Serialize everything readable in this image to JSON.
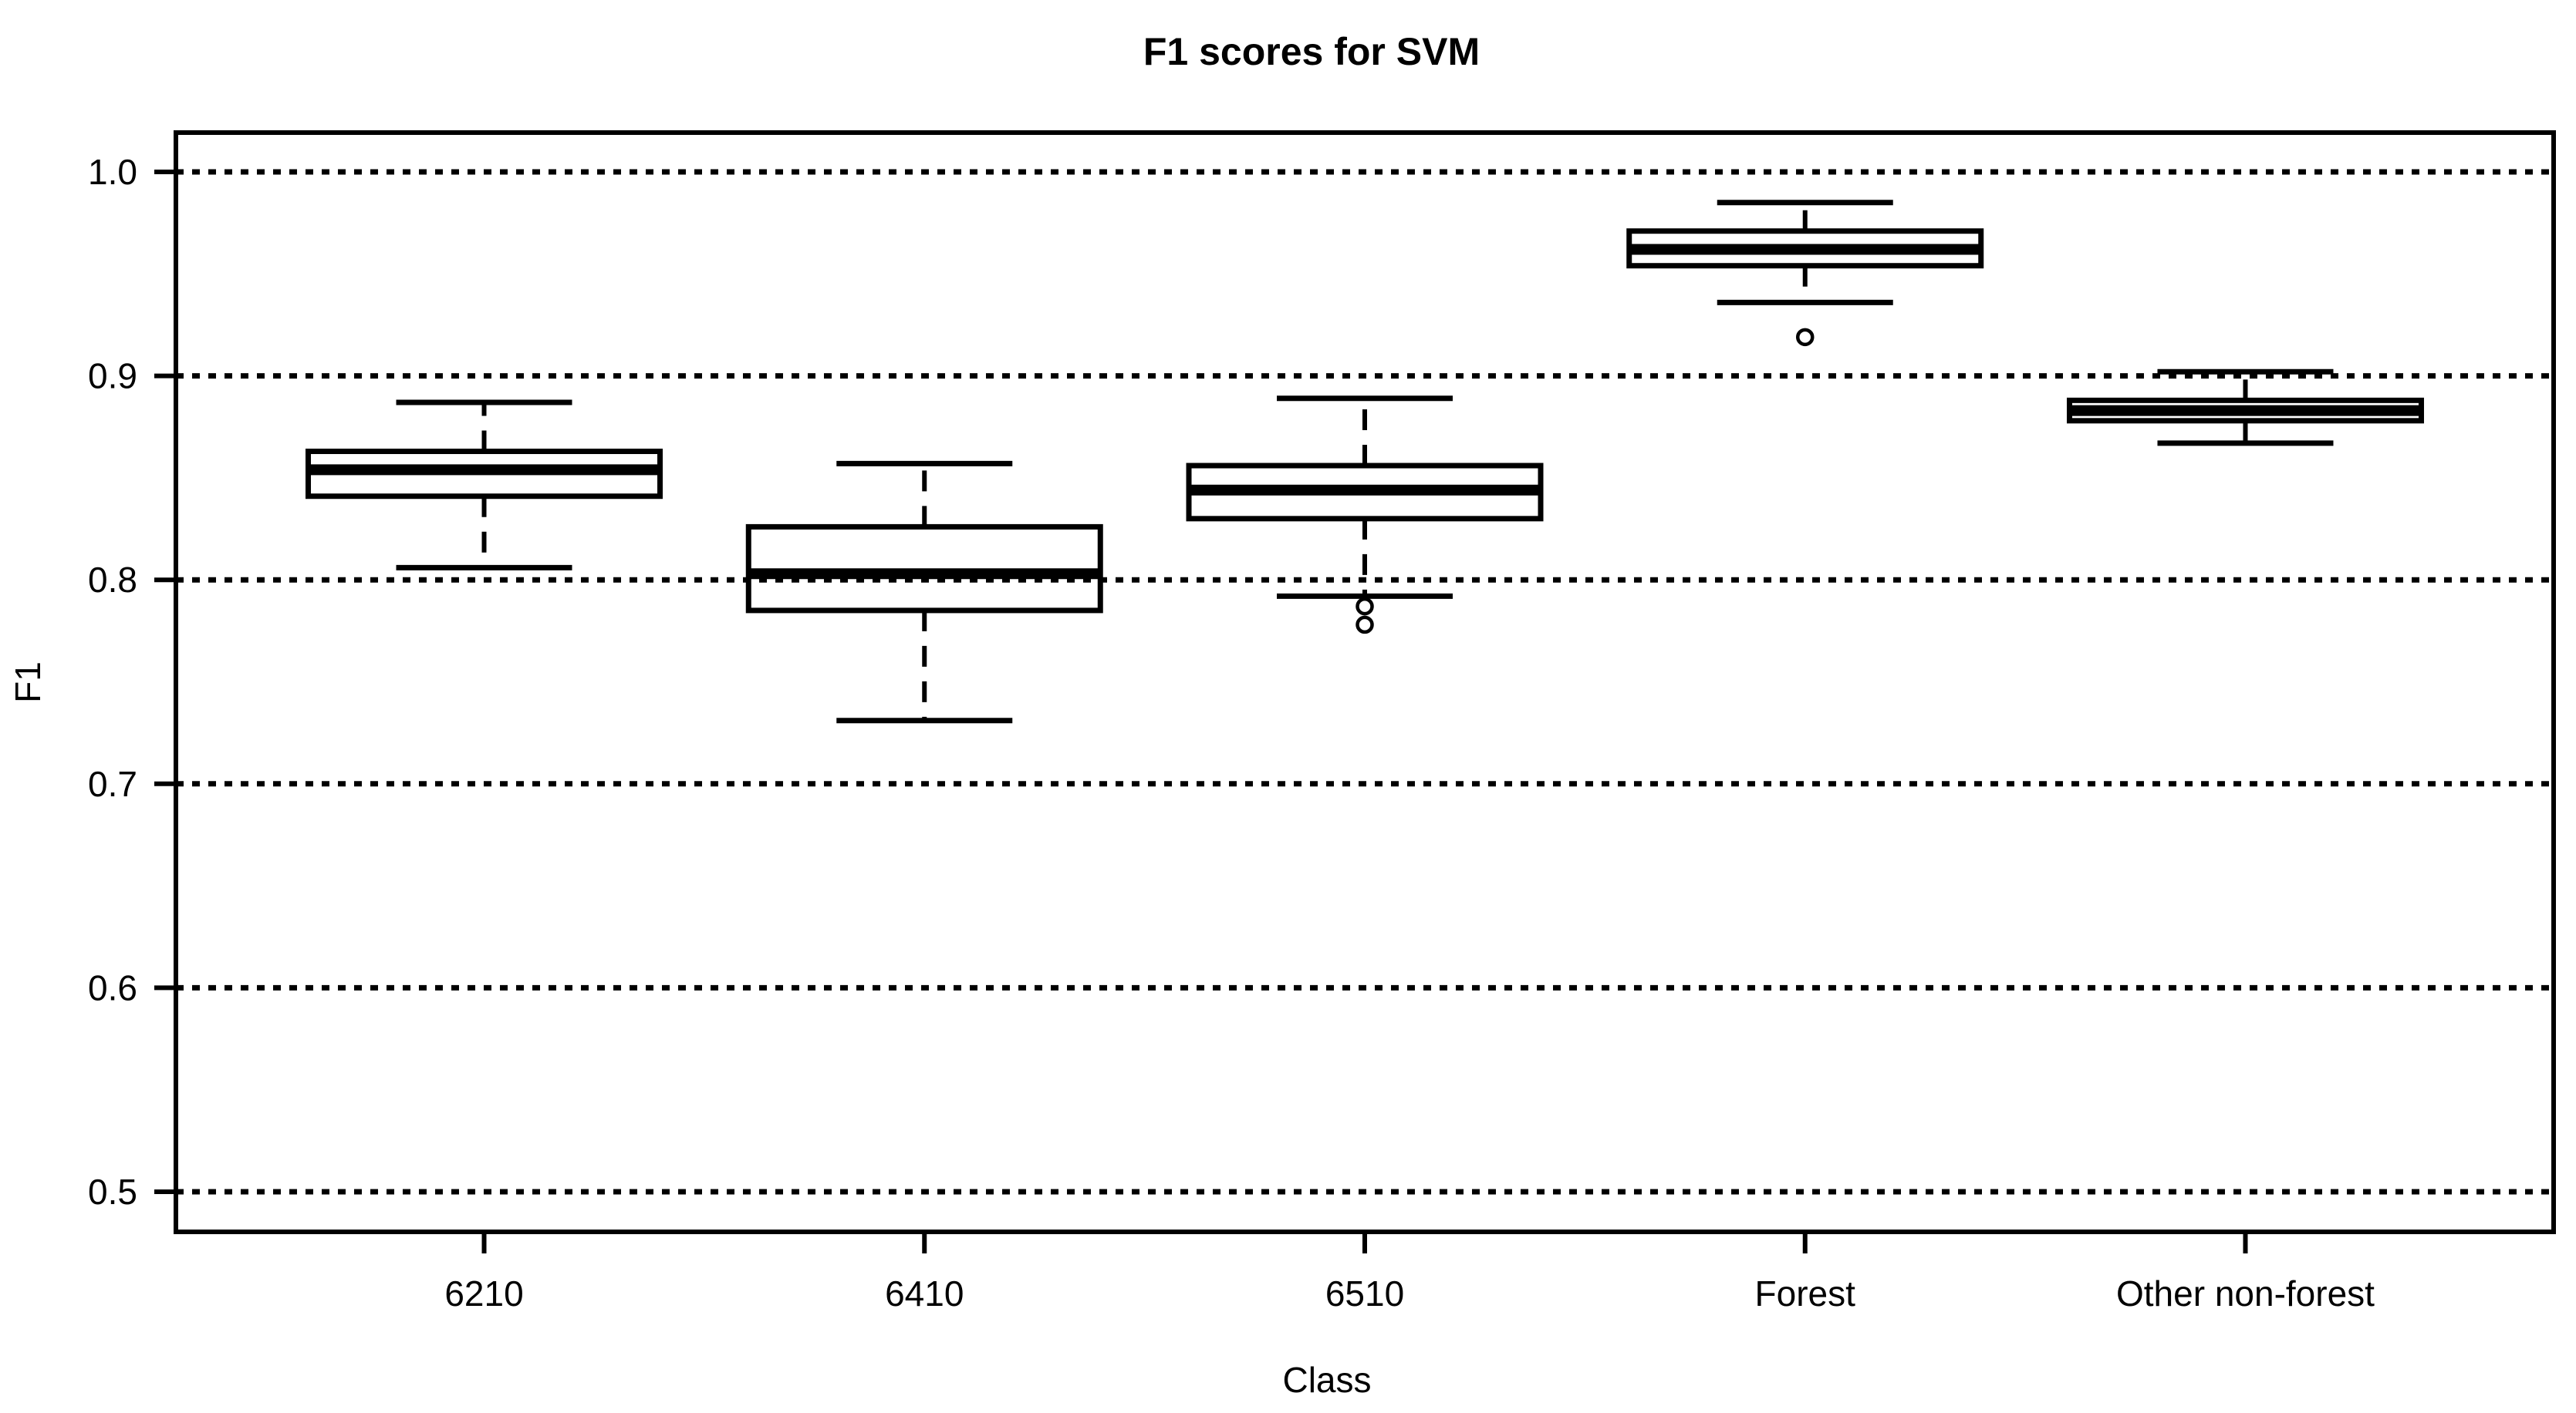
{
  "page": {
    "background": "#ffffff"
  },
  "chart_data": {
    "type": "boxplot",
    "title": "F1 scores for SVM",
    "xlabel": "Class",
    "ylabel": "F1",
    "categories": [
      "6210",
      "6410",
      "6510",
      "Forest",
      "Other non-forest"
    ],
    "yticks": [
      1.0,
      0.9,
      0.8,
      0.7,
      0.6,
      0.5
    ],
    "ytick_labels": [
      "1.0",
      "0.9",
      "0.8",
      "0.7",
      "0.6",
      "0.5"
    ],
    "ylim": [
      0.48,
      1.02
    ],
    "grid": "horizontal-dotted-at-each-ytick",
    "legend": "none",
    "boxes": [
      {
        "category": "6210",
        "whisker_low": 0.806,
        "q1": 0.841,
        "median": 0.854,
        "q3": 0.863,
        "whisker_high": 0.887,
        "outliers": []
      },
      {
        "category": "6410",
        "whisker_low": 0.731,
        "q1": 0.785,
        "median": 0.803,
        "q3": 0.826,
        "whisker_high": 0.857,
        "outliers": []
      },
      {
        "category": "6510",
        "whisker_low": 0.792,
        "q1": 0.83,
        "median": 0.844,
        "q3": 0.856,
        "whisker_high": 0.889,
        "outliers": [
          0.787,
          0.778
        ]
      },
      {
        "category": "Forest",
        "whisker_low": 0.936,
        "q1": 0.954,
        "median": 0.962,
        "q3": 0.971,
        "whisker_high": 0.985,
        "outliers": [
          0.919
        ]
      },
      {
        "category": "Other non-forest",
        "whisker_low": 0.867,
        "q1": 0.878,
        "median": 0.883,
        "q3": 0.888,
        "whisker_high": 0.902,
        "outliers": []
      }
    ],
    "colors": {
      "stroke": "#000000",
      "box_fill": "#ffffff"
    }
  }
}
